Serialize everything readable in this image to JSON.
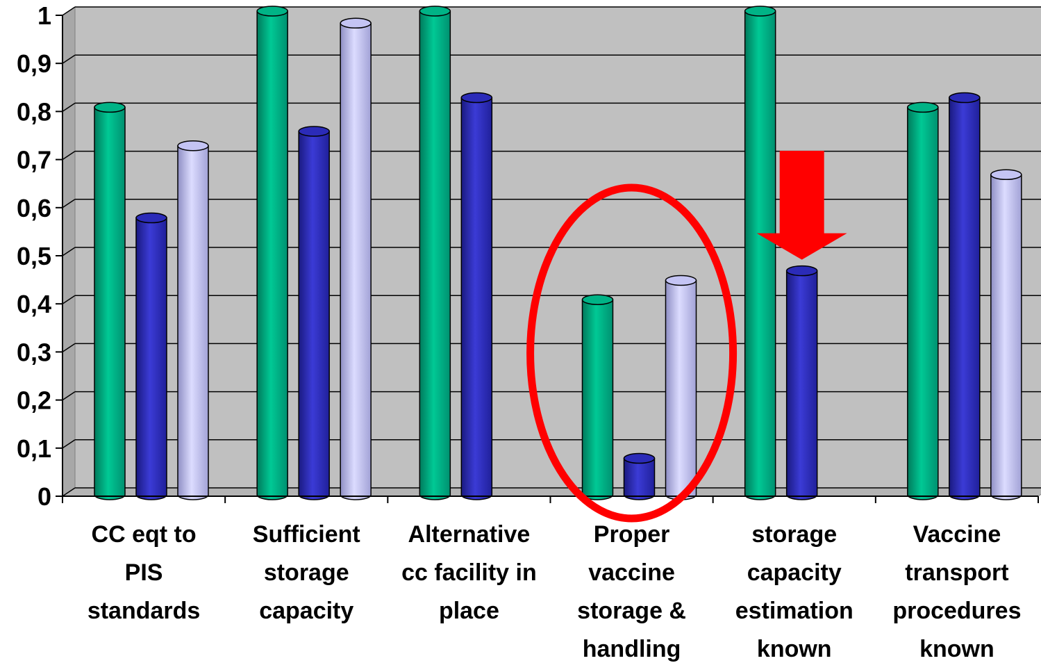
{
  "chart_data": {
    "type": "bar",
    "title": "",
    "xlabel": "",
    "ylabel": "",
    "ylim": [
      0,
      1
    ],
    "yticks": [
      "0",
      "0,1",
      "0,2",
      "0,3",
      "0,4",
      "0,5",
      "0,6",
      "0,7",
      "0,8",
      "0,9",
      "1"
    ],
    "grid": true,
    "legend": "none",
    "categories": [
      [
        "CC eqt to",
        "PIS",
        "standards"
      ],
      [
        "Sufficient",
        "storage",
        "capacity"
      ],
      [
        "Alternative",
        "cc facility in",
        "place"
      ],
      [
        "Proper",
        "vaccine",
        "storage &",
        "handling"
      ],
      [
        "storage",
        "capacity",
        "estimation",
        "known"
      ],
      [
        "Vaccine",
        "transport",
        "procedures",
        "known"
      ]
    ],
    "series": [
      {
        "color": "#00b386",
        "values": [
          0.8,
          1.0,
          1.0,
          0.4,
          1.0,
          0.8
        ]
      },
      {
        "color": "#2b2bb8",
        "values": [
          0.57,
          0.75,
          0.82,
          0.07,
          0.46,
          0.82
        ]
      },
      {
        "color": "#c4c4f4",
        "values": [
          0.72,
          0.975,
          null,
          0.44,
          null,
          0.66
        ]
      }
    ],
    "annotations": [
      {
        "type": "ellipse",
        "target_category": 3,
        "color": "#ff0000"
      },
      {
        "type": "down-arrow",
        "target_category": 4,
        "series": 1,
        "color": "#ff0000"
      }
    ]
  }
}
